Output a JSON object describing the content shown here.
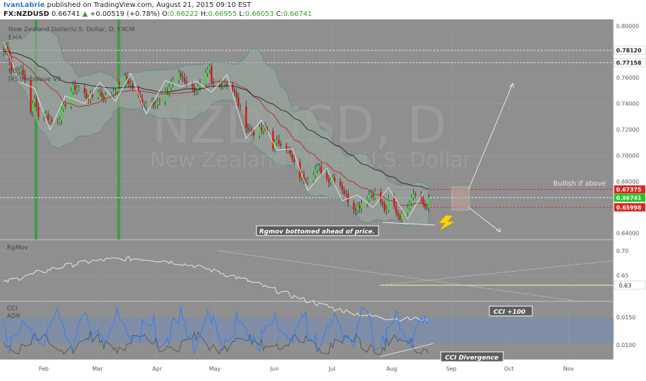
{
  "header": {
    "author": "IvanLabrie",
    "published": "published on TradingView.com, August 21, 2015 09:10 EST",
    "symbol": "FX:NZDUSD",
    "last": "0.66741",
    "change": "+0.00519 (+0.78%)",
    "o_label": "O:",
    "o": "0.66222",
    "h_label": "H:",
    "h": "0.66955",
    "l_label": "L:",
    "l": "0.66053",
    "c_label": "C:",
    "c": "0.66741"
  },
  "colors": {
    "panel_bg": "#8f8f8f",
    "up": "#33dd33",
    "down": "#dd1111",
    "bands": "#2f8c78",
    "ema": "#222222",
    "accent_green": "#3a9a3a"
  },
  "main_panel": {
    "title": "New Zealand Dollar/U.S. Dollar, D, FXCM",
    "indicators": [
      "EMA",
      "BB",
      "[RS]NeoWave V0"
    ],
    "watermark_symbol": "NZDUSD, D",
    "watermark_name": "New Zealand Dollar/U.S. Dollar",
    "y_ticks": [
      "0.80000",
      "0.78000",
      "0.76000",
      "0.74000",
      "0.72000",
      "0.70000",
      "0.68000",
      "0.66000",
      "0.64000"
    ],
    "price_tags": [
      {
        "label": "0.78120",
        "value": 0.7812,
        "color": "#ffffff"
      },
      {
        "label": "0.77158",
        "value": 0.77158,
        "color": "#ffffff"
      },
      {
        "label": "0.67375",
        "value": 0.67375,
        "color": "#e61e1e"
      },
      {
        "label": "0.66741",
        "value": 0.66741,
        "color": "#22c722"
      },
      {
        "label": "0.65998",
        "value": 0.65998,
        "color": "#e61e1e"
      }
    ],
    "annotation_bullish": "Bullish if above",
    "annotation_rgmov": "Rgmov bottomed ahead of price."
  },
  "rgmov_panel": {
    "title": "RgMov",
    "y_ticks": [
      "0.70",
      "0.65"
    ],
    "level_tag": "0.63"
  },
  "cci_panel": {
    "title": "CCI",
    "title2": "ADR",
    "y_ticks": [
      "0.0150",
      "0.0100"
    ],
    "annotation_cci100": "CCI +100",
    "annotation_divergence": "CCI Divergence"
  },
  "x_axis": {
    "labels": [
      "Feb",
      "Mar",
      "Apr",
      "May",
      "Jun",
      "Jul",
      "Aug",
      "Sep",
      "Oct",
      "Nov"
    ]
  },
  "chart_data": {
    "type": "candlestick",
    "symbol": "FX:NZDUSD",
    "timeframe": "D",
    "y_range": [
      0.635,
      0.805
    ],
    "x_range": [
      "2015-01-10",
      "2015-11-25"
    ],
    "monthly_closes": [
      {
        "date": "2015-01-31",
        "close": 0.7265
      },
      {
        "date": "2015-02-28",
        "close": 0.7545
      },
      {
        "date": "2015-03-31",
        "close": 0.747
      },
      {
        "date": "2015-04-30",
        "close": 0.763
      },
      {
        "date": "2015-05-31",
        "close": 0.708
      },
      {
        "date": "2015-06-30",
        "close": 0.6765
      },
      {
        "date": "2015-07-31",
        "close": 0.658
      },
      {
        "date": "2015-08-21",
        "close": 0.66741
      }
    ],
    "levels": [
      0.7812,
      0.77158,
      0.67375,
      0.65998
    ],
    "rgmov": {
      "y_ticks": [
        0.7,
        0.65
      ],
      "level": 0.63
    },
    "cci_adr": {
      "y_ticks": [
        0.015,
        0.01
      ]
    }
  }
}
